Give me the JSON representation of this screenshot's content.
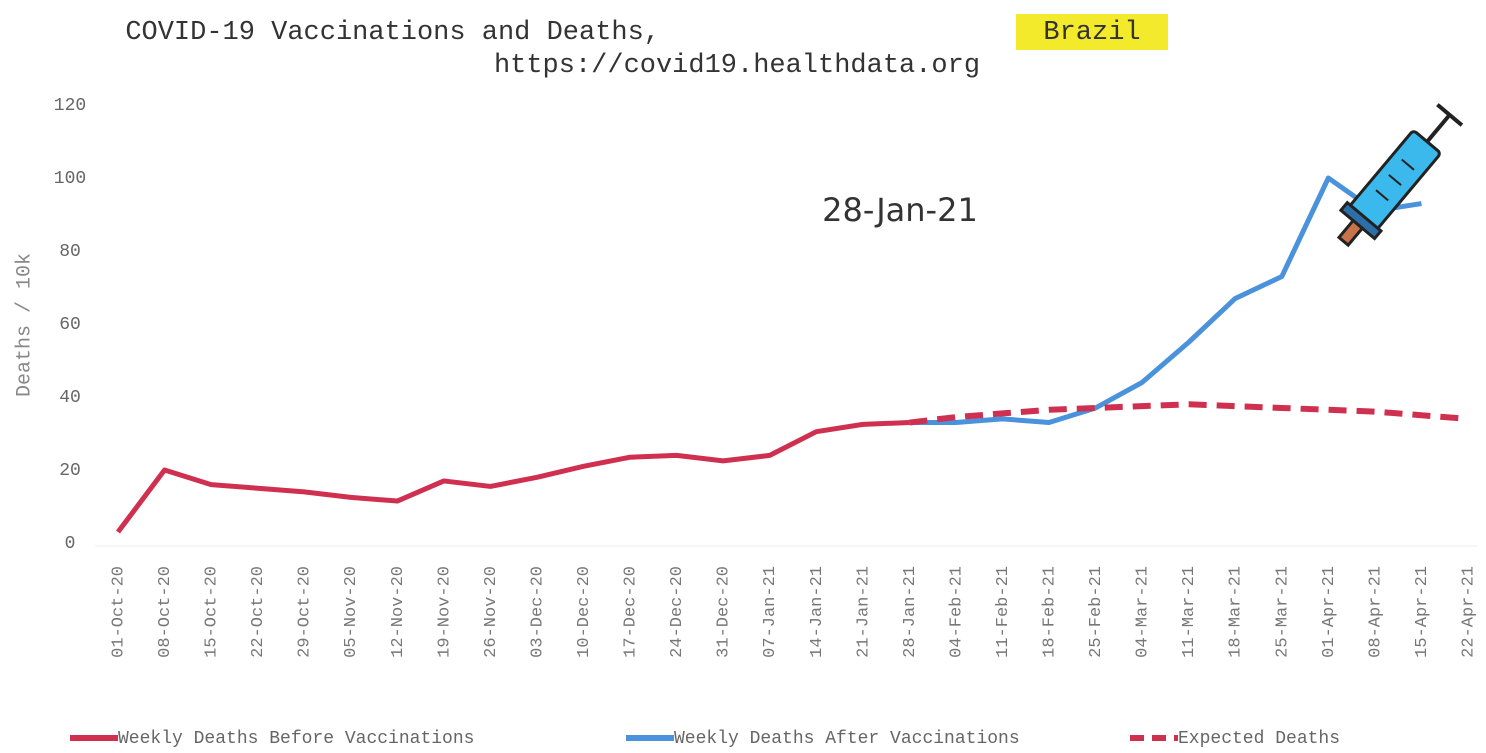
{
  "chart_data": {
    "type": "line",
    "title": "COVID-19 Vaccinations and Deaths,",
    "title_highlight": "Brazil",
    "subtitle": "https://covid19.healthdata.org",
    "annotation": "28-Jan-21",
    "ylabel": "Deaths / 10k",
    "categories": [
      "01-Oct-20",
      "08-Oct-20",
      "15-Oct-20",
      "22-Oct-20",
      "29-Oct-20",
      "05-Nov-20",
      "12-Nov-20",
      "19-Nov-20",
      "26-Nov-20",
      "03-Dec-20",
      "10-Dec-20",
      "17-Dec-20",
      "24-Dec-20",
      "31-Dec-20",
      "07-Jan-21",
      "14-Jan-21",
      "21-Jan-21",
      "28-Jan-21",
      "04-Feb-21",
      "11-Feb-21",
      "18-Feb-21",
      "25-Feb-21",
      "04-Mar-21",
      "11-Mar-21",
      "18-Mar-21",
      "25-Mar-21",
      "01-Apr-21",
      "08-Apr-21",
      "15-Apr-21",
      "22-Apr-21"
    ],
    "series": [
      {
        "name": "Weekly Deaths Before Vaccinations",
        "color": "#d0304f",
        "dashed": false,
        "values": [
          3,
          20,
          16,
          15,
          14,
          12.5,
          11.5,
          17,
          15.5,
          18,
          21,
          23.5,
          24,
          22.5,
          24,
          30.5,
          32.5,
          33,
          null,
          null,
          null,
          null,
          null,
          null,
          null,
          null,
          null,
          null,
          null,
          null
        ]
      },
      {
        "name": "Weekly Deaths After Vaccinations",
        "color": "#4a92db",
        "dashed": false,
        "values": [
          null,
          null,
          null,
          null,
          null,
          null,
          null,
          null,
          null,
          null,
          null,
          null,
          null,
          null,
          null,
          null,
          null,
          33,
          33,
          34,
          33,
          37,
          44,
          55,
          67,
          73,
          100,
          91,
          93,
          null
        ]
      },
      {
        "name": "Expected Deaths",
        "color": "#d0304f",
        "dashed": true,
        "values": [
          null,
          null,
          null,
          null,
          null,
          null,
          null,
          null,
          null,
          null,
          null,
          null,
          null,
          null,
          null,
          null,
          null,
          33,
          34.5,
          35.5,
          36.5,
          37,
          37.5,
          38,
          37.5,
          37,
          36.5,
          36,
          35,
          34
        ]
      }
    ],
    "ylim": [
      0,
      120
    ],
    "yticks": [
      0,
      20,
      40,
      60,
      80,
      100,
      120
    ]
  }
}
